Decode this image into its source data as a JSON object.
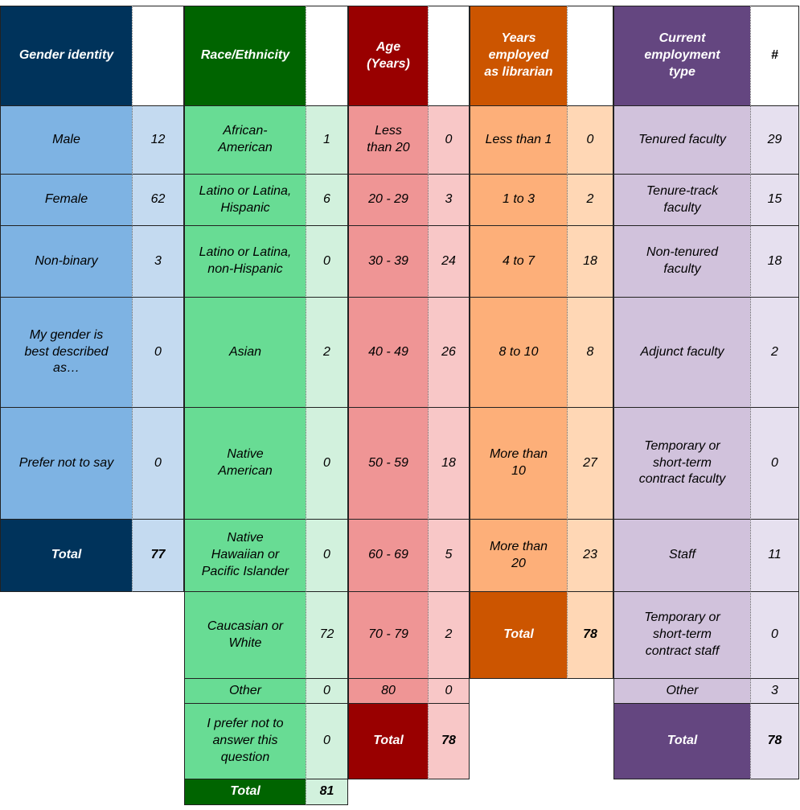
{
  "colors": {
    "gender": {
      "header": "#00335b",
      "label": "#7eb3e3",
      "value": "#c4daf0"
    },
    "race": {
      "header": "#006400",
      "label": "#68dc94",
      "value": "#d2f1dd"
    },
    "age": {
      "header": "#990000",
      "label": "#ef9595",
      "value": "#f8c7c7"
    },
    "years": {
      "header": "#cc5500",
      "label": "#fdaf79",
      "value": "#ffd7b5"
    },
    "employment": {
      "header": "#644680",
      "label": "#d1c2dc",
      "value": "#e6e0ef"
    }
  },
  "gender": {
    "header": "Gender identity",
    "value_header": "",
    "rows": [
      {
        "label": "Male",
        "value": "12"
      },
      {
        "label": "Female",
        "value": "62"
      },
      {
        "label": "Non-binary",
        "value": "3"
      },
      {
        "label": "My gender is\nbest described\nas…",
        "value": "0"
      },
      {
        "label": "Prefer not to say",
        "value": "0"
      }
    ],
    "total": {
      "label": "Total",
      "value": "77"
    }
  },
  "race": {
    "header": "Race/Ethnicity",
    "value_header": "",
    "rows": [
      {
        "label": "African-\nAmerican",
        "value": "1"
      },
      {
        "label": "Latino or Latina,\nHispanic",
        "value": "6"
      },
      {
        "label": "Latino or Latina,\nnon-Hispanic",
        "value": "0"
      },
      {
        "label": "Asian",
        "value": "2"
      },
      {
        "label": "Native\nAmerican",
        "value": "0"
      },
      {
        "label": "Native\nHawaiian or\nPacific Islander",
        "value": "0"
      },
      {
        "label": "Caucasian or\nWhite",
        "value": "72"
      },
      {
        "label": "Other",
        "value": "0"
      },
      {
        "label": "I prefer not to\nanswer this\nquestion",
        "value": "0"
      }
    ],
    "total": {
      "label": "Total",
      "value": "81"
    }
  },
  "age": {
    "header": "Age\n(Years)",
    "value_header": "",
    "rows": [
      {
        "label": "Less\nthan 20",
        "value": "0"
      },
      {
        "label": "20 - 29",
        "value": "3"
      },
      {
        "label": "30 - 39",
        "value": "24"
      },
      {
        "label": "40 - 49",
        "value": "26"
      },
      {
        "label": "50 - 59",
        "value": "18"
      },
      {
        "label": "60 - 69",
        "value": "5"
      },
      {
        "label": "70 - 79",
        "value": "2"
      },
      {
        "label": "80",
        "value": "0"
      }
    ],
    "total": {
      "label": "Total",
      "value": "78"
    }
  },
  "years": {
    "header": "Years\nemployed\nas librarian",
    "value_header": "",
    "rows": [
      {
        "label": "Less than 1",
        "value": "0"
      },
      {
        "label": "1 to 3",
        "value": "2"
      },
      {
        "label": "4 to 7",
        "value": "18"
      },
      {
        "label": "8 to 10",
        "value": "8"
      },
      {
        "label": "More than\n10",
        "value": "27"
      },
      {
        "label": "More than\n20",
        "value": "23"
      }
    ],
    "total": {
      "label": "Total",
      "value": "78"
    }
  },
  "employment": {
    "header": "Current\nemployment\ntype",
    "value_header": "#",
    "rows": [
      {
        "label": "Tenured faculty",
        "value": "29"
      },
      {
        "label": "Tenure-track\nfaculty",
        "value": "15"
      },
      {
        "label": "Non-tenured\nfaculty",
        "value": "18"
      },
      {
        "label": "Adjunct faculty",
        "value": "2"
      },
      {
        "label": "Temporary or\nshort-term\ncontract faculty",
        "value": "0"
      },
      {
        "label": "Staff",
        "value": "11"
      },
      {
        "label": "Temporary or\nshort-term\ncontract staff",
        "value": "0"
      },
      {
        "label": "Other",
        "value": "3"
      }
    ],
    "total": {
      "label": "Total",
      "value": "78"
    }
  }
}
